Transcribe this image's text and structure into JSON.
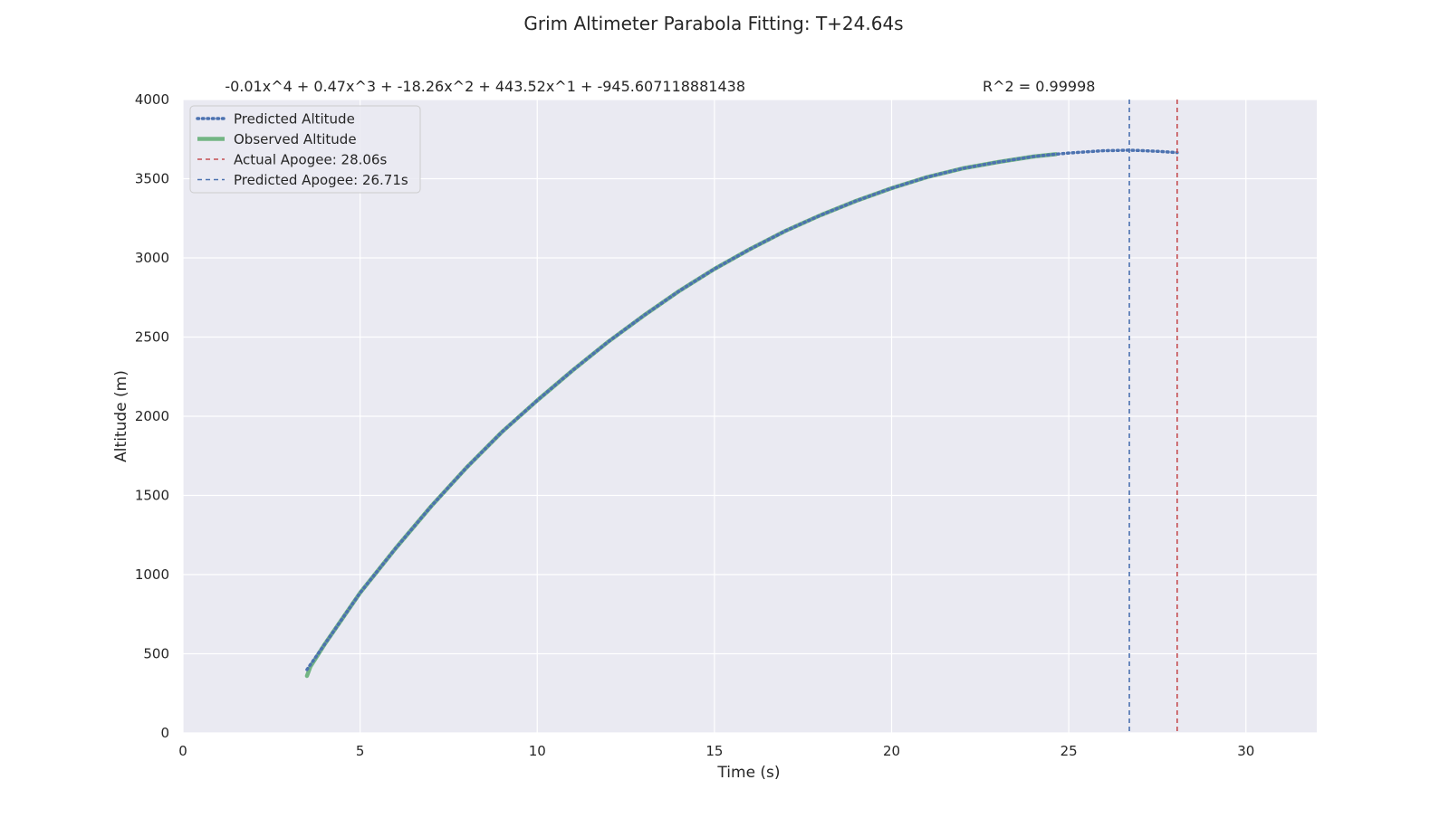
{
  "chart_data": {
    "type": "line",
    "title": "Grim Altimeter Parabola Fitting: T+24.64s",
    "subtitle_equation": "-0.01x^4 + 0.47x^3 + -18.26x^2 + 443.52x^1 + -945.607118881438",
    "subtitle_r2": "R^2 = 0.99998",
    "xlabel": "Time (s)",
    "ylabel": "Altitude (m)",
    "xlim": [
      0,
      32
    ],
    "ylim": [
      0,
      4000
    ],
    "xticks": [
      0,
      5,
      10,
      15,
      20,
      25,
      30
    ],
    "yticks": [
      0,
      500,
      1000,
      1500,
      2000,
      2500,
      3000,
      3500,
      4000
    ],
    "grid": true,
    "legend_position": "top-left",
    "series": [
      {
        "name": "Predicted Altitude",
        "style": "dotted",
        "color": "#4c72b0",
        "x": [
          3.5,
          4,
          5,
          6,
          7,
          8,
          9,
          10,
          11,
          12,
          13,
          14,
          15,
          16,
          17,
          18,
          19,
          20,
          21,
          22,
          23,
          24,
          24.64,
          25,
          25.5,
          26,
          26.71,
          27,
          27.5,
          28.06
        ],
        "y": [
          400,
          560,
          885,
          1165,
          1430,
          1675,
          1900,
          2100,
          2290,
          2470,
          2635,
          2790,
          2930,
          3055,
          3170,
          3270,
          3360,
          3440,
          3510,
          3565,
          3605,
          3640,
          3655,
          3662,
          3670,
          3677,
          3680,
          3678,
          3673,
          3665
        ]
      },
      {
        "name": "Observed Altitude",
        "style": "solid",
        "color": "#55a868",
        "x": [
          3.5,
          3.6,
          4,
          5,
          6,
          7,
          8,
          9,
          10,
          11,
          12,
          13,
          14,
          15,
          16,
          17,
          18,
          19,
          20,
          21,
          22,
          23,
          24,
          24.64
        ],
        "y": [
          360,
          420,
          560,
          885,
          1165,
          1430,
          1675,
          1900,
          2100,
          2290,
          2470,
          2635,
          2790,
          2930,
          3055,
          3170,
          3270,
          3360,
          3440,
          3510,
          3565,
          3605,
          3640,
          3655
        ]
      }
    ],
    "vlines": [
      {
        "name": "Actual Apogee: 28.06s",
        "x": 28.06,
        "color": "#c44e52",
        "style": "dashed"
      },
      {
        "name": "Predicted Apogee: 26.71s",
        "x": 26.71,
        "color": "#4c72b0",
        "style": "dashed"
      }
    ],
    "legend": [
      {
        "label": "Predicted Altitude",
        "color": "#4c72b0",
        "style": "dotted"
      },
      {
        "label": "Observed Altitude",
        "color": "#55a868",
        "style": "solid"
      },
      {
        "label": "Actual Apogee: 28.06s",
        "color": "#c44e52",
        "style": "dashed"
      },
      {
        "label": "Predicted Apogee: 26.71s",
        "color": "#4c72b0",
        "style": "dashed"
      }
    ],
    "colors": {
      "plot_background": "#eaeaf2",
      "grid": "#ffffff"
    }
  }
}
